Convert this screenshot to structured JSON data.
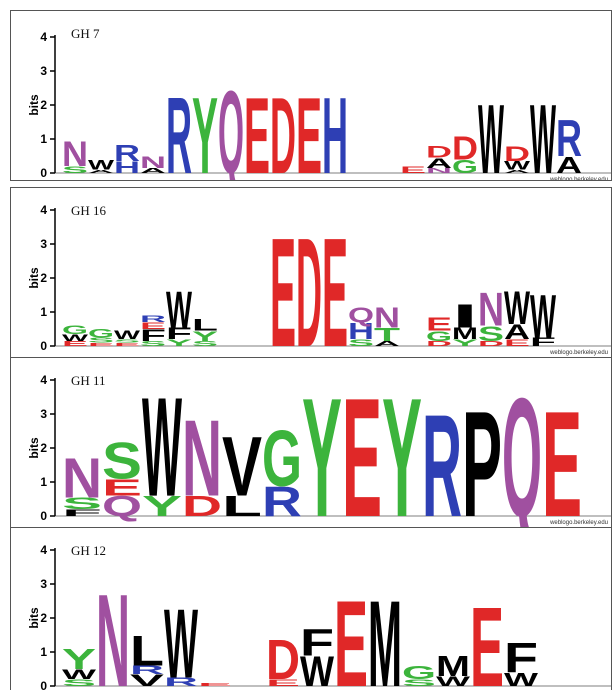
{
  "colors": {
    "N": "#a050a0",
    "W": "#000000",
    "R": "#2e3fb4",
    "Y": "#3cb43c",
    "Q": "#a050a0",
    "E": "#e02828",
    "D": "#e02828",
    "H": "#2e3fb4",
    "A": "#000000",
    "G": "#3cb43c",
    "S": "#3cb43c",
    "P": "#000000",
    "V": "#000000",
    "L": "#000000",
    "F": "#000000",
    "I": "#000000",
    "M": "#000000",
    "T": "#3cb43c",
    "K": "#2e3fb4",
    "C": "#3cb43c"
  },
  "credit": "weblogo.berkeley.edu",
  "chart_data": [
    {
      "type": "sequence-logo",
      "title": "GH 7",
      "ylabel": "bits",
      "yticks": [
        "0",
        "1",
        "2",
        "3",
        "4"
      ],
      "ylim": [
        0,
        4.3
      ],
      "columns": [
        [
          [
            "S",
            0.2
          ],
          [
            "N",
            0.75
          ]
        ],
        [
          [
            "A",
            0.1
          ],
          [
            "W",
            0.3
          ]
        ],
        [
          [
            "H",
            0.35
          ],
          [
            "R",
            0.5
          ]
        ],
        [
          [
            "A",
            0.15
          ],
          [
            "N",
            0.35
          ]
        ],
        [
          [
            "R",
            2.3
          ]
        ],
        [
          [
            "Y",
            2.3
          ]
        ],
        [
          [
            "Q",
            2.5
          ]
        ],
        [
          [
            "E",
            2.3
          ]
        ],
        [
          [
            "D",
            2.3
          ]
        ],
        [
          [
            "E",
            2.3
          ]
        ],
        [
          [
            "H",
            2.3
          ]
        ],
        [],
        [],
        [
          [
            "E",
            0.2
          ]
        ],
        [
          [
            "N",
            0.15
          ],
          [
            "A",
            0.3
          ],
          [
            "D",
            0.35
          ]
        ],
        [
          [
            "G",
            0.4
          ],
          [
            "D",
            0.7
          ]
        ],
        [
          [
            "W",
            2.1
          ]
        ],
        [
          [
            "A",
            0.1
          ],
          [
            "W",
            0.25
          ],
          [
            "D",
            0.45
          ]
        ],
        [
          [
            "W",
            2.1
          ]
        ],
        [
          [
            "A",
            0.5
          ],
          [
            "R",
            1.1
          ]
        ]
      ]
    },
    {
      "type": "sequence-logo",
      "title": "GH 16",
      "ylabel": "bits",
      "yticks": [
        "0",
        "1",
        "2",
        "3",
        "4"
      ],
      "ylim": [
        0,
        4.3
      ],
      "columns": [
        [
          [
            "E",
            0.15
          ],
          [
            "W",
            0.2
          ],
          [
            "G",
            0.25
          ]
        ],
        [
          [
            "E",
            0.1
          ],
          [
            "S",
            0.15
          ],
          [
            "G",
            0.25
          ]
        ],
        [
          [
            "E",
            0.1
          ],
          [
            "S",
            0.1
          ],
          [
            "W",
            0.25
          ]
        ],
        [
          [
            "S",
            0.15
          ],
          [
            "F",
            0.35
          ],
          [
            "E",
            0.2
          ],
          [
            "R",
            0.2
          ]
        ],
        [
          [
            "Y",
            0.2
          ],
          [
            "F",
            0.35
          ],
          [
            "W",
            1.1
          ]
        ],
        [
          [
            "S",
            0.15
          ],
          [
            "Y",
            0.3
          ],
          [
            "L",
            0.35
          ]
        ],
        [],
        [],
        [
          [
            "E",
            3.3
          ]
        ],
        [
          [
            "D",
            3.3
          ]
        ],
        [
          [
            "E",
            3.3
          ]
        ],
        [
          [
            "S",
            0.2
          ],
          [
            "H",
            0.5
          ],
          [
            "Q",
            0.45
          ]
        ],
        [
          [
            "A",
            0.15
          ],
          [
            "T",
            0.4
          ],
          [
            "N",
            0.6
          ]
        ],
        [],
        [
          [
            "D",
            0.15
          ],
          [
            "G",
            0.3
          ],
          [
            "E",
            0.4
          ]
        ],
        [
          [
            "Y",
            0.2
          ],
          [
            "M",
            0.35
          ],
          [
            "I",
            0.7
          ]
        ],
        [
          [
            "D",
            0.15
          ],
          [
            "S",
            0.45
          ],
          [
            "N",
            1.0
          ]
        ],
        [
          [
            "E",
            0.2
          ],
          [
            "A",
            0.45
          ],
          [
            "W",
            1.0
          ]
        ],
        [
          [
            "F",
            0.25
          ],
          [
            "W",
            1.3
          ]
        ]
      ]
    },
    {
      "type": "sequence-logo",
      "title": "GH 11",
      "ylabel": "bits",
      "yticks": [
        "0",
        "1",
        "2",
        "3",
        "4"
      ],
      "ylim": [
        0,
        4.3
      ],
      "columns": [
        [
          [
            "F",
            0.2
          ],
          [
            "S",
            0.35
          ],
          [
            "N",
            1.2
          ]
        ],
        [
          [
            "Q",
            0.6
          ],
          [
            "E",
            0.5
          ],
          [
            "S",
            1.1
          ]
        ],
        [
          [
            "Y",
            0.6
          ],
          [
            "W",
            3.0
          ]
        ],
        [
          [
            "D",
            0.6
          ],
          [
            "N",
            2.3
          ]
        ],
        [
          [
            "L",
            0.6
          ],
          [
            "V",
            1.8
          ]
        ],
        [
          [
            "R",
            0.9
          ],
          [
            "G",
            1.7
          ]
        ],
        [
          [
            "Y",
            3.6
          ]
        ],
        [
          [
            "E",
            3.6
          ]
        ],
        [
          [
            "Y",
            3.6
          ]
        ],
        [
          [
            "R",
            3.1
          ]
        ],
        [
          [
            "P",
            3.2
          ]
        ],
        [
          [
            "Q",
            3.6
          ]
        ],
        [
          [
            "E",
            3.2
          ]
        ]
      ]
    },
    {
      "type": "sequence-logo",
      "title": "GH 12",
      "ylabel": "bits",
      "yticks": [
        "0",
        "1",
        "2",
        "3",
        "4"
      ],
      "ylim": [
        0,
        4.3
      ],
      "columns": [
        [
          [
            "S",
            0.2
          ],
          [
            "W",
            0.3
          ],
          [
            "Y",
            0.6
          ]
        ],
        [
          [
            "N",
            2.8
          ]
        ],
        [
          [
            "V",
            0.35
          ],
          [
            "R",
            0.25
          ],
          [
            "L",
            0.9
          ]
        ],
        [
          [
            "R",
            0.25
          ],
          [
            "W",
            2.1
          ]
        ],
        [
          [
            "E",
            0.1
          ]
        ],
        [],
        [
          [
            "E",
            0.2
          ],
          [
            "D",
            1.2
          ]
        ],
        [
          [
            "W",
            0.9
          ],
          [
            "F",
            0.8
          ]
        ],
        [
          [
            "E",
            2.6
          ]
        ],
        [
          [
            "M",
            2.6
          ]
        ],
        [
          [
            "S",
            0.2
          ],
          [
            "G",
            0.4
          ]
        ],
        [
          [
            "W",
            0.3
          ],
          [
            "M",
            0.6
          ]
        ],
        [
          [
            "E",
            2.4
          ]
        ],
        [
          [
            "W",
            0.4
          ],
          [
            "F",
            0.9
          ]
        ]
      ]
    }
  ]
}
